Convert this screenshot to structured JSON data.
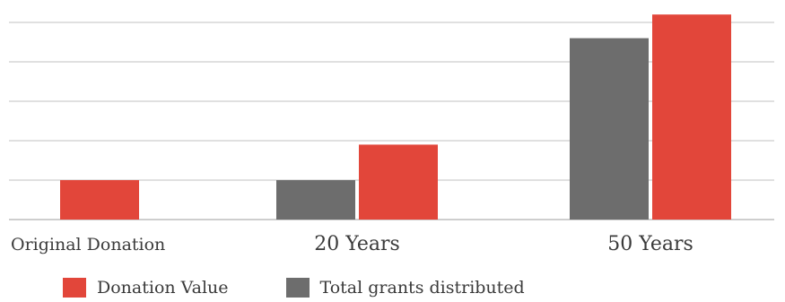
{
  "chart_data": {
    "type": "bar",
    "title": "",
    "xlabel": "",
    "ylabel": "",
    "categories": [
      "Original Donation",
      "20 Years",
      "50 Years"
    ],
    "series": [
      {
        "name": "Total grants distributed",
        "color": "#6d6d6d",
        "values": [
          0,
          1,
          4.6
        ]
      },
      {
        "name": "Donation Value",
        "color": "#e2463a",
        "values": [
          1,
          1.9,
          5.2
        ]
      }
    ],
    "ylim": [
      0,
      5
    ],
    "grid": true,
    "y_tick_labels_shown": false,
    "legend_position": "bottom-left",
    "legend_order": [
      "Donation Value",
      "Total grants distributed"
    ]
  }
}
